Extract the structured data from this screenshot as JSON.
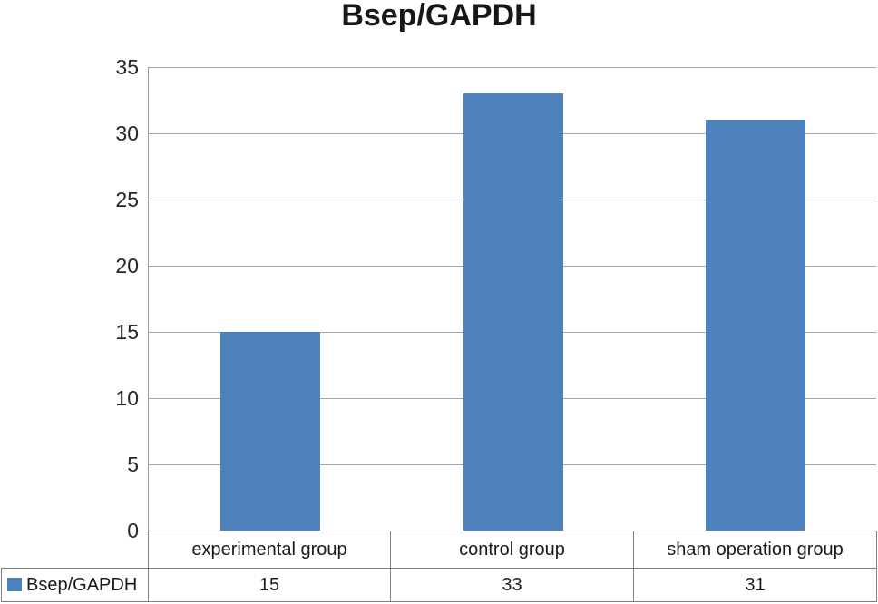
{
  "title": "Bsep/GAPDH",
  "colors": {
    "bar": "#4f81bd",
    "gridline": "#a6a6a6",
    "axis_line": "#9b9b9b",
    "table_border": "#7f7f7f",
    "text": "#1a1a1a"
  },
  "legend": {
    "label": "Bsep/GAPDH",
    "swatch_color": "#4f81bd"
  },
  "chart_data": {
    "type": "bar",
    "title": "Bsep/GAPDH",
    "categories": [
      "experimental group",
      "control group",
      "sham operation group"
    ],
    "series": [
      {
        "name": "Bsep/GAPDH",
        "values": [
          15,
          33,
          31
        ]
      }
    ],
    "xlabel": "",
    "ylabel": "",
    "ylim": [
      0,
      35
    ],
    "ytick_step": 5,
    "yticks": [
      0,
      5,
      10,
      15,
      20,
      25,
      30,
      35
    ],
    "grid": true,
    "legend_position": "bottom-table-left",
    "data_table_shown": true
  }
}
